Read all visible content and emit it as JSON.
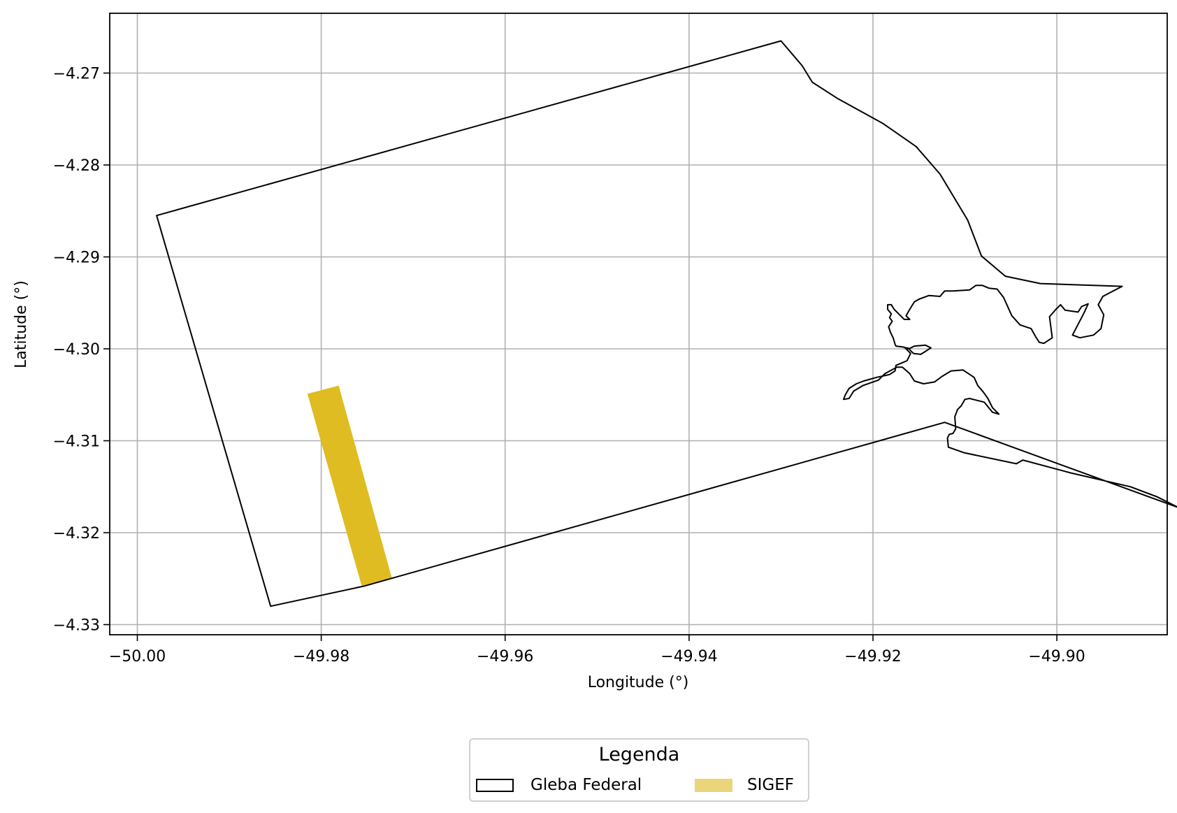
{
  "chart_data": {
    "type": "map",
    "xlabel": "Longitude (°)",
    "ylabel": "Latitude (°)",
    "xlim": [
      -50.003,
      -49.888
    ],
    "ylim": [
      -4.3311,
      -4.2635
    ],
    "xticks": [
      -50.0,
      -49.98,
      -49.96,
      -49.94,
      -49.92,
      -49.9
    ],
    "xtick_labels": [
      "−50.00",
      "−49.98",
      "−49.96",
      "−49.94",
      "−49.92",
      "−49.90"
    ],
    "yticks": [
      -4.27,
      -4.28,
      -4.29,
      -4.3,
      -4.31,
      -4.32,
      -4.33
    ],
    "ytick_labels": [
      "−4.27",
      "−4.28",
      "−4.29",
      "−4.30",
      "−4.31",
      "−4.32",
      "−4.33"
    ],
    "grid": true,
    "legend": {
      "title": "Legenda",
      "placement": "bottom-center",
      "entries": [
        "Gleba Federal",
        "SIGEF"
      ]
    },
    "series": [
      {
        "name": "Gleba Federal",
        "kind": "outline",
        "stroke": "#000000",
        "coordinates": [
          [
            -49.9979,
            -4.2855
          ],
          [
            -49.93,
            -4.2665
          ],
          [
            -49.9277,
            -4.2692
          ],
          [
            -49.9266,
            -4.271
          ],
          [
            -49.9238,
            -4.2728
          ],
          [
            -49.9189,
            -4.2755
          ],
          [
            -49.9153,
            -4.278
          ],
          [
            -49.9127,
            -4.281
          ],
          [
            -49.9097,
            -4.286
          ],
          [
            -49.9082,
            -4.2899
          ],
          [
            -49.9056,
            -4.2921
          ],
          [
            -49.9018,
            -4.2929
          ],
          [
            -49.8929,
            -4.2932
          ],
          [
            -49.895,
            -4.2943
          ],
          [
            -49.8955,
            -4.2952
          ],
          [
            -49.8949,
            -4.2963
          ],
          [
            -49.8952,
            -4.2978
          ],
          [
            -49.896,
            -4.2985
          ],
          [
            -49.8975,
            -4.2988
          ],
          [
            -49.8983,
            -4.2985
          ],
          [
            -49.897,
            -4.296
          ],
          [
            -49.8966,
            -4.2951
          ],
          [
            -49.8973,
            -4.2954
          ],
          [
            -49.8977,
            -4.296
          ],
          [
            -49.8991,
            -4.2958
          ],
          [
            -49.8996,
            -4.2952
          ],
          [
            -49.9001,
            -4.2957
          ],
          [
            -49.9008,
            -4.2965
          ],
          [
            -49.9005,
            -4.2988
          ],
          [
            -49.9014,
            -4.2994
          ],
          [
            -49.9019,
            -4.2993
          ],
          [
            -49.9023,
            -4.2987
          ],
          [
            -49.9028,
            -4.2978
          ],
          [
            -49.904,
            -4.2974
          ],
          [
            -49.9049,
            -4.2964
          ],
          [
            -49.9058,
            -4.2944
          ],
          [
            -49.9065,
            -4.2935
          ],
          [
            -49.9074,
            -4.2934
          ],
          [
            -49.9081,
            -4.2931
          ],
          [
            -49.9088,
            -4.2931
          ],
          [
            -49.9095,
            -4.2936
          ],
          [
            -49.9113,
            -4.2937
          ],
          [
            -49.9122,
            -4.2937
          ],
          [
            -49.9127,
            -4.2943
          ],
          [
            -49.9139,
            -4.2942
          ],
          [
            -49.915,
            -4.2946
          ],
          [
            -49.9155,
            -4.2949
          ],
          [
            -49.916,
            -4.2957
          ],
          [
            -49.9164,
            -4.2964
          ],
          [
            -49.916,
            -4.2968
          ],
          [
            -49.9166,
            -4.2968
          ],
          [
            -49.9171,
            -4.2963
          ],
          [
            -49.9177,
            -4.2957
          ],
          [
            -49.918,
            -4.2952
          ],
          [
            -49.9184,
            -4.2952
          ],
          [
            -49.9184,
            -4.2957
          ],
          [
            -49.918,
            -4.2962
          ],
          [
            -49.9182,
            -4.2966
          ],
          [
            -49.9179,
            -4.297
          ],
          [
            -49.9183,
            -4.2976
          ],
          [
            -49.9181,
            -4.2982
          ],
          [
            -49.9178,
            -4.2988
          ],
          [
            -49.9176,
            -4.2995
          ],
          [
            -49.9175,
            -4.2997
          ],
          [
            -49.9167,
            -4.2998
          ],
          [
            -49.9161,
            -4.3
          ],
          [
            -49.9155,
            -4.2997
          ],
          [
            -49.9143,
            -4.2996
          ],
          [
            -49.9137,
            -4.2999
          ],
          [
            -49.9148,
            -4.3006
          ],
          [
            -49.9156,
            -4.3005
          ],
          [
            -49.9162,
            -4.2999
          ],
          [
            -49.9165,
            -4.2999
          ],
          [
            -49.9159,
            -4.3005
          ],
          [
            -49.9163,
            -4.3013
          ],
          [
            -49.9175,
            -4.3018
          ],
          [
            -49.9176,
            -4.3024
          ],
          [
            -49.9182,
            -4.3028
          ],
          [
            -49.9196,
            -4.3031
          ],
          [
            -49.921,
            -4.3035
          ],
          [
            -49.9218,
            -4.3038
          ],
          [
            -49.9226,
            -4.3043
          ],
          [
            -49.923,
            -4.305
          ],
          [
            -49.9232,
            -4.3055
          ],
          [
            -49.9226,
            -4.3054
          ],
          [
            -49.9221,
            -4.3046
          ],
          [
            -49.9211,
            -4.304
          ],
          [
            -49.9194,
            -4.3034
          ],
          [
            -49.9187,
            -4.3027
          ],
          [
            -49.9174,
            -4.302
          ],
          [
            -49.9168,
            -4.302
          ],
          [
            -49.916,
            -4.3027
          ],
          [
            -49.9155,
            -4.3035
          ],
          [
            -49.9145,
            -4.3038
          ],
          [
            -49.9133,
            -4.3036
          ],
          [
            -49.9125,
            -4.303
          ],
          [
            -49.9115,
            -4.3024
          ],
          [
            -49.9102,
            -4.3023
          ],
          [
            -49.909,
            -4.3031
          ],
          [
            -49.9086,
            -4.304
          ],
          [
            -49.908,
            -4.3047
          ],
          [
            -49.9075,
            -4.3054
          ],
          [
            -49.907,
            -4.3064
          ],
          [
            -49.9063,
            -4.3071
          ],
          [
            -49.907,
            -4.3069
          ],
          [
            -49.9079,
            -4.3058
          ],
          [
            -49.9095,
            -4.3054
          ],
          [
            -49.91,
            -4.3055
          ],
          [
            -49.9104,
            -4.3062
          ],
          [
            -49.9108,
            -4.3066
          ],
          [
            -49.9111,
            -4.3074
          ],
          [
            -49.911,
            -4.3087
          ],
          [
            -49.9113,
            -4.3092
          ],
          [
            -49.9117,
            -4.3093
          ],
          [
            -49.9119,
            -4.3097
          ],
          [
            -49.9118,
            -4.3107
          ],
          [
            -49.9101,
            -4.3113
          ],
          [
            -49.9044,
            -4.3125
          ],
          [
            -49.9037,
            -4.3121
          ],
          [
            -49.8985,
            -4.3135
          ],
          [
            -49.892,
            -4.315
          ],
          [
            -49.8891,
            -4.3161
          ],
          [
            -49.8867,
            -4.3173
          ],
          [
            -49.9122,
            -4.308
          ],
          [
            -49.9753,
            -4.3258
          ],
          [
            -49.9855,
            -4.328
          ],
          [
            -49.9979,
            -4.2855
          ]
        ]
      },
      {
        "name": "SIGEF",
        "kind": "filled",
        "fill": "#dfbc21",
        "coordinates": [
          [
            -49.9815,
            -4.3049
          ],
          [
            -49.9781,
            -4.304
          ],
          [
            -49.9723,
            -4.325
          ],
          [
            -49.9756,
            -4.3258
          ],
          [
            -49.9815,
            -4.3049
          ]
        ]
      }
    ]
  }
}
